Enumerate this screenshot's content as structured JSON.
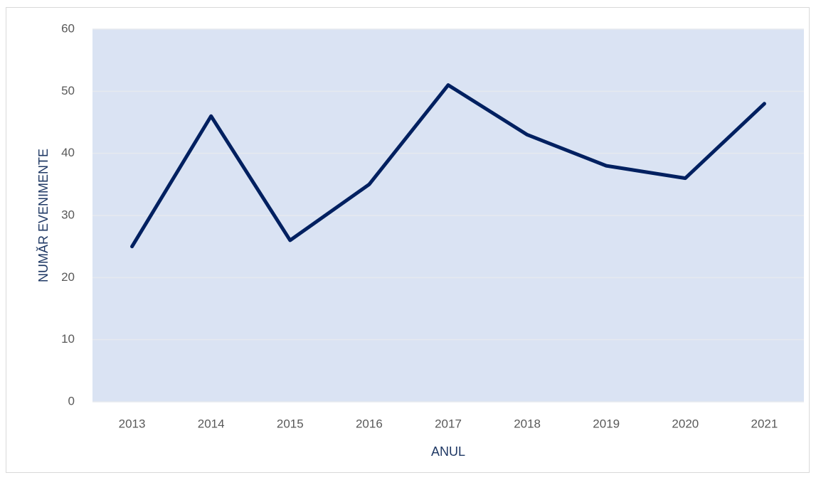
{
  "chart_data": {
    "type": "line",
    "x_label": "ANUL",
    "y_label": "NUMĂR  EVENIMENTE",
    "categories": [
      "2013",
      "2014",
      "2015",
      "2016",
      "2017",
      "2018",
      "2019",
      "2020",
      "2021"
    ],
    "values": [
      25,
      46,
      26,
      35,
      51,
      43,
      38,
      36,
      48
    ],
    "color": "#002060",
    "plot_background": "#dae3f3",
    "ylim": [
      0,
      60
    ],
    "yticks": [
      0,
      10,
      20,
      30,
      40,
      50,
      60
    ],
    "grid": true
  }
}
